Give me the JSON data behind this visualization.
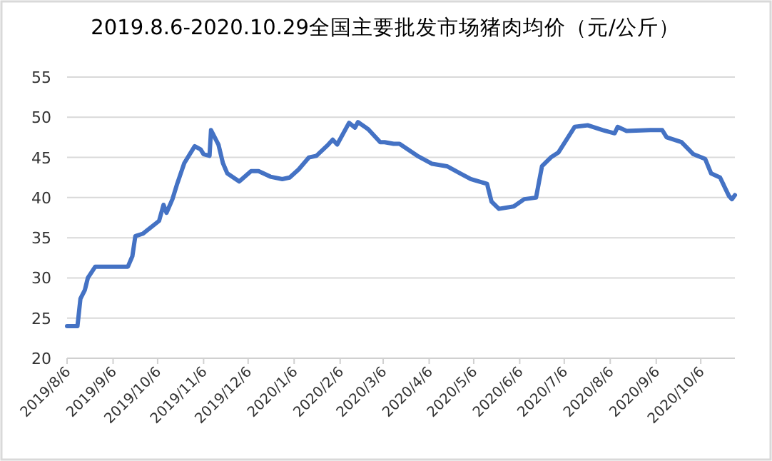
{
  "chart_data": {
    "type": "line",
    "title": "2019.8.6-2020.10.29全国主要批发市场猪肉均价（元/公斤）",
    "x": [
      "2019-08-06",
      "2019-08-13",
      "2019-08-15",
      "2019-08-18",
      "2019-08-20",
      "2019-08-25",
      "2019-09-16",
      "2019-09-19",
      "2019-09-21",
      "2019-09-26",
      "2019-10-07",
      "2019-10-10",
      "2019-10-12",
      "2019-10-16",
      "2019-10-19",
      "2019-10-24",
      "2019-10-31",
      "2019-11-04",
      "2019-11-06",
      "2019-11-10",
      "2019-11-11",
      "2019-11-16",
      "2019-11-19",
      "2019-11-22",
      "2019-11-30",
      "2019-12-08",
      "2019-12-13",
      "2019-12-21",
      "2019-12-29",
      "2020-01-03",
      "2020-01-09",
      "2020-01-16",
      "2020-01-21",
      "2020-01-29",
      "2020-02-01",
      "2020-02-04",
      "2020-02-12",
      "2020-02-16",
      "2020-02-18",
      "2020-02-25",
      "2020-03-04",
      "2020-03-07",
      "2020-03-13",
      "2020-03-17",
      "2020-03-29",
      "2020-04-08",
      "2020-04-18",
      "2020-04-27",
      "2020-05-04",
      "2020-05-15",
      "2020-05-18",
      "2020-05-23",
      "2020-06-02",
      "2020-06-09",
      "2020-06-17",
      "2020-06-21",
      "2020-06-27",
      "2020-07-02",
      "2020-07-13",
      "2020-07-22",
      "2020-08-01",
      "2020-08-09",
      "2020-08-11",
      "2020-08-17",
      "2020-09-02",
      "2020-09-10",
      "2020-09-13",
      "2020-09-23",
      "2020-10-01",
      "2020-10-09",
      "2020-10-13",
      "2020-10-19",
      "2020-10-25",
      "2020-10-27",
      "2020-10-29"
    ],
    "values": [
      24,
      24,
      27.4,
      28.5,
      30,
      31.4,
      31.4,
      32.7,
      35.2,
      35.5,
      37.1,
      39.1,
      38.1,
      39.8,
      41.6,
      44.3,
      46.4,
      46,
      45.4,
      45.2,
      48.4,
      46.6,
      44.3,
      43,
      42,
      43.3,
      43.3,
      42.6,
      42.3,
      42.5,
      43.5,
      45,
      45.2,
      46.6,
      47.2,
      46.6,
      49.3,
      48.7,
      49.4,
      48.5,
      46.9,
      46.9,
      46.7,
      46.7,
      45.2,
      44.2,
      43.9,
      43,
      42.3,
      41.7,
      39.5,
      38.6,
      38.9,
      39.8,
      40,
      43.9,
      45,
      45.6,
      48.8,
      49,
      48.4,
      48,
      48.8,
      48.3,
      48.4,
      48.4,
      47.5,
      46.9,
      45.4,
      44.8,
      43,
      42.5,
      40.2,
      39.8,
      40.3
    ],
    "color": "#4472c4",
    "xlim": [
      "2019-08-06",
      "2020-10-29"
    ],
    "ylim": [
      20,
      55
    ],
    "yticks": [
      20,
      25,
      30,
      35,
      40,
      45,
      50,
      55
    ],
    "xticks": [
      {
        "value": "2019-08-06",
        "label": "2019/8/6"
      },
      {
        "value": "2019-09-06",
        "label": "2019/9/6"
      },
      {
        "value": "2019-10-06",
        "label": "2019/10/6"
      },
      {
        "value": "2019-11-06",
        "label": "2019/11/6"
      },
      {
        "value": "2019-12-06",
        "label": "2019/12/6"
      },
      {
        "value": "2020-01-06",
        "label": "2020/1/6"
      },
      {
        "value": "2020-02-06",
        "label": "2020/2/6"
      },
      {
        "value": "2020-03-06",
        "label": "2020/3/6"
      },
      {
        "value": "2020-04-06",
        "label": "2020/4/6"
      },
      {
        "value": "2020-05-06",
        "label": "2020/5/6"
      },
      {
        "value": "2020-06-06",
        "label": "2020/6/6"
      },
      {
        "value": "2020-07-06",
        "label": "2020/7/6"
      },
      {
        "value": "2020-08-06",
        "label": "2020/8/6"
      },
      {
        "value": "2020-09-06",
        "label": "2020/9/6"
      },
      {
        "value": "2020-10-06",
        "label": "2020/10/6"
      }
    ],
    "grid": "y"
  }
}
